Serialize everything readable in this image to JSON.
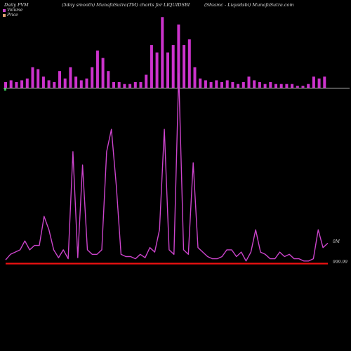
{
  "header": {
    "left": "Daily PVM",
    "middle": "(5day smooth) MunafaSutra(TM) charts for LIQUIDSBI",
    "right": "(Shiamc - Liquidsbi) MunafaSutra.com"
  },
  "legend": [
    {
      "label": "Volume",
      "color": "#cc44cc"
    },
    {
      "label": "Price",
      "color": "#e0a070"
    }
  ],
  "chart_data": {
    "type": "bar+line",
    "y_labels": {
      "volume_label": "0M",
      "price_label": "999.99"
    },
    "colors": {
      "volume": "#cc33cc",
      "line": "#cc44cc",
      "price": "#ee1111",
      "axis": "#ffffff"
    },
    "volume": [
      3,
      4,
      3,
      4,
      5,
      11,
      10,
      6,
      4,
      3,
      9,
      5,
      11,
      6,
      4,
      5,
      11,
      20,
      16,
      9,
      3,
      3,
      2,
      2,
      3,
      3,
      7,
      23,
      19,
      38,
      19,
      23,
      34,
      23,
      26,
      11,
      5,
      4,
      3,
      4,
      3,
      4,
      3,
      2,
      3,
      6,
      4,
      3,
      2,
      3,
      2,
      2,
      2,
      2,
      1,
      1,
      2,
      6,
      5,
      6
    ],
    "line": [
      3,
      8,
      10,
      12,
      20,
      12,
      16,
      16,
      42,
      30,
      12,
      5,
      12,
      4,
      100,
      5,
      88,
      12,
      8,
      8,
      12,
      100,
      120,
      70,
      8,
      6,
      6,
      4,
      8,
      5,
      14,
      10,
      30,
      120,
      12,
      8,
      170,
      12,
      8,
      90,
      14,
      10,
      6,
      4,
      4,
      6,
      12,
      12,
      6,
      10,
      2,
      10,
      30,
      10,
      8,
      4,
      4,
      10,
      6,
      8,
      4,
      4,
      2,
      2,
      4,
      30,
      14,
      18
    ],
    "price": [
      1,
      1,
      1,
      1,
      1,
      1,
      1,
      1,
      1,
      1,
      1,
      1,
      1,
      1,
      1,
      1,
      1,
      1,
      1,
      1,
      1,
      1,
      1,
      1,
      1,
      1,
      1,
      1,
      1,
      1,
      1,
      1,
      1,
      1,
      1,
      1,
      1,
      1,
      1,
      1,
      1,
      1,
      1,
      1,
      1,
      1,
      1,
      1,
      1,
      1,
      1,
      1,
      1,
      1,
      1,
      1,
      1,
      1,
      1,
      1,
      1,
      1,
      1,
      1,
      1,
      1,
      1,
      1
    ]
  }
}
